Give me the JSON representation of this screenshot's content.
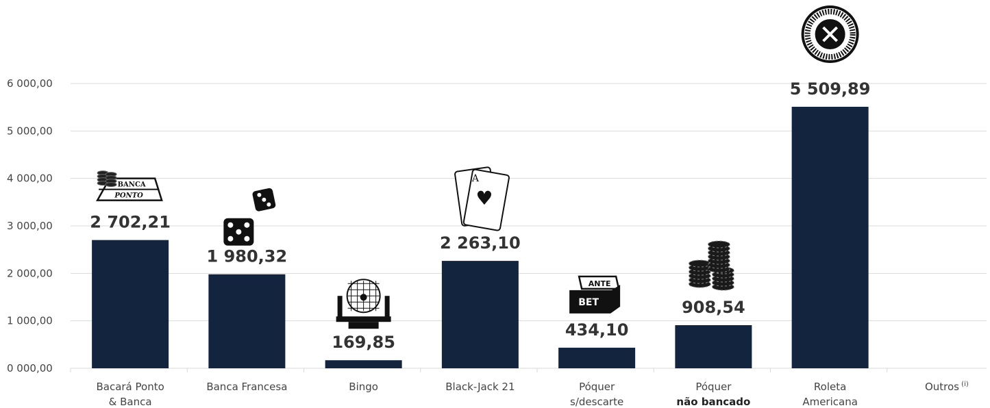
{
  "chart_data": {
    "type": "bar",
    "categories": [
      [
        "Bacará Ponto",
        "& Banca"
      ],
      [
        "Banca Francesa"
      ],
      [
        "Bingo"
      ],
      [
        "Black-Jack 21"
      ],
      [
        "Póquer",
        "s/descarte"
      ],
      [
        "Póquer",
        "não bancado"
      ],
      [
        "Roleta",
        "Americana"
      ],
      [
        "Outros"
      ]
    ],
    "category_superscripts": [
      "",
      "",
      "",
      "",
      "",
      "",
      "",
      "(i)"
    ],
    "values": [
      2702.21,
      1980.32,
      169.85,
      2263.1,
      434.1,
      908.54,
      5509.89,
      null
    ],
    "value_labels": [
      "2 702,21",
      "1 980,32",
      "169,85",
      "2 263,10",
      "434,10",
      "908,54",
      "5 509,89",
      ""
    ],
    "ytick_labels": [
      "0 000,00",
      "1 000,00",
      "2 000,00",
      "3 000,00",
      "4 000,00",
      "5 000,00",
      "6 000,00"
    ],
    "ytick_values": [
      0,
      1000,
      2000,
      3000,
      4000,
      5000,
      6000
    ],
    "ylim": [
      0,
      6000
    ],
    "grid": true,
    "bar_color": "#13243f",
    "grid_color": "#d9d9d9",
    "icons": [
      "baccarat-table-icon",
      "dice-icon",
      "bingo-cage-icon",
      "playing-cards-icon",
      "ante-bet-chest-icon",
      "poker-chips-icon",
      "roulette-wheel-icon",
      ""
    ],
    "title": "",
    "xlabel": "",
    "ylabel": ""
  }
}
